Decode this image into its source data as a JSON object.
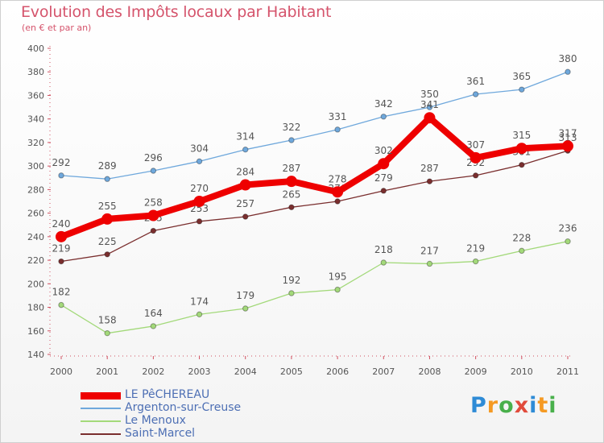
{
  "title": "Evolution des Impôts locaux par Habitant",
  "subtitle": "(en € et par an)",
  "logo": {
    "letters": [
      "P",
      "r",
      "o",
      "x",
      "i",
      "t",
      "i"
    ],
    "colors": [
      "#2e8bd6",
      "#f59a23",
      "#49b04b",
      "#e14b3b",
      "#2e8bd6",
      "#f59a23",
      "#49b04b"
    ]
  },
  "chart_data": {
    "type": "line",
    "title": "Evolution des Impôts locaux par Habitant",
    "subtitle": "(en € et par an)",
    "xlabel": "",
    "ylabel": "",
    "x": [
      "2000",
      "2001",
      "2002",
      "2003",
      "2004",
      "2005",
      "2006",
      "2007",
      "2008",
      "2009",
      "2010",
      "2011"
    ],
    "ylim": [
      140,
      400
    ],
    "yticks": [
      140,
      160,
      180,
      200,
      220,
      240,
      260,
      280,
      300,
      320,
      340,
      360,
      380,
      400
    ],
    "grid": false,
    "legend_position": "bottom-left",
    "series": [
      {
        "name": "LE PêCHEREAU",
        "color": "#ee0000",
        "emphasis": true,
        "values": [
          240,
          255,
          258,
          270,
          284,
          287,
          278,
          302,
          341,
          307,
          315,
          317
        ]
      },
      {
        "name": "Argenton-sur-Creuse",
        "color": "#6fa8dc",
        "values": [
          292,
          289,
          296,
          304,
          314,
          322,
          331,
          342,
          350,
          361,
          365,
          380
        ]
      },
      {
        "name": "Le Menoux",
        "color": "#a3d97a",
        "values": [
          182,
          158,
          164,
          174,
          179,
          192,
          195,
          218,
          217,
          219,
          228,
          236
        ]
      },
      {
        "name": "Saint-Marcel",
        "color": "#7a2e2e",
        "values": [
          219,
          225,
          245,
          253,
          257,
          265,
          270,
          279,
          287,
          292,
          301,
          313
        ]
      }
    ]
  }
}
